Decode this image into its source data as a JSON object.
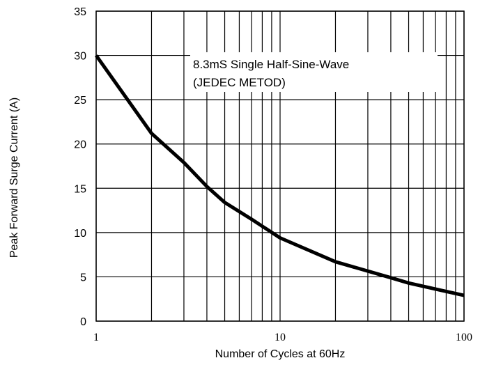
{
  "chart_data": {
    "type": "line",
    "title": "",
    "xlabel": "Number of Cycles at 60Hz",
    "ylabel": "Peak Forward Surge Current (A)",
    "x_scale": "log",
    "xlim": [
      1,
      100
    ],
    "ylim": [
      0,
      35
    ],
    "x_ticks": [
      1,
      10,
      100
    ],
    "x_tick_labels": [
      "1",
      "10",
      "100"
    ],
    "y_ticks": [
      0,
      5,
      10,
      15,
      20,
      25,
      30,
      35
    ],
    "y_tick_labels": [
      "0",
      "5",
      "10",
      "15",
      "20",
      "25",
      "30",
      "35"
    ],
    "grid": true,
    "legend": "none",
    "annotation": [
      "8.3mS Single Half-Sine-Wave",
      "(JEDEC METOD)"
    ],
    "series": [
      {
        "color": "#000000",
        "x": [
          1,
          2,
          3,
          4,
          5,
          7,
          10,
          20,
          40,
          50,
          100
        ],
        "y": [
          30,
          21.2,
          17.9,
          15.2,
          13.4,
          11.5,
          9.4,
          6.7,
          4.9,
          4.3,
          2.9
        ]
      }
    ]
  }
}
